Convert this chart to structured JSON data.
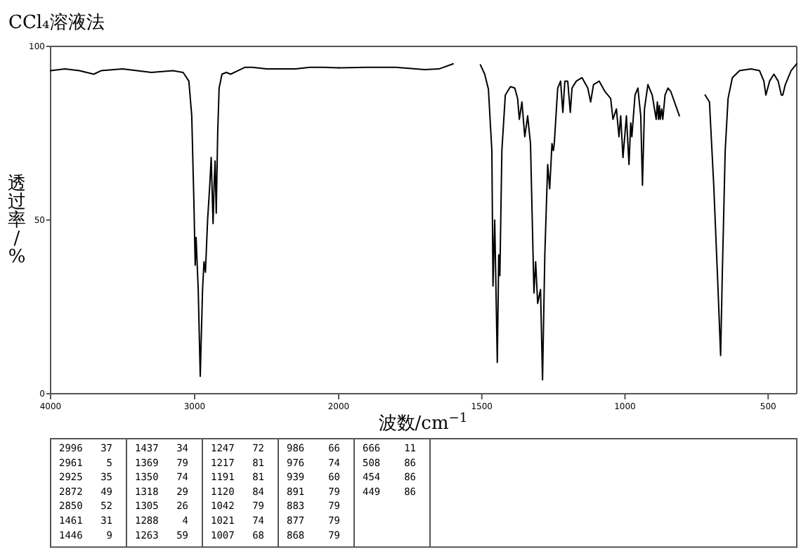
{
  "chart_data": [
    {
      "type": "line",
      "title": "CCl₄溶液法",
      "ylabel": "透过率/%",
      "xlim": [
        4000,
        2000
      ],
      "xticks": [
        4000,
        3000,
        2000
      ],
      "ylim": [
        0,
        100
      ],
      "yticks": [
        0,
        50,
        100
      ],
      "grid": false,
      "series": [
        {
          "color": "#000000",
          "x": [
            4000,
            3900,
            3800,
            3700,
            3650,
            3500,
            3300,
            3150,
            3080,
            3040,
            3020,
            3005,
            2996,
            2990,
            2975,
            2961,
            2945,
            2935,
            2925,
            2910,
            2895,
            2885,
            2872,
            2865,
            2858,
            2850,
            2840,
            2830,
            2810,
            2780,
            2750,
            2700,
            2650,
            2600,
            2500,
            2400,
            2300,
            2200,
            2100,
            2000
          ],
          "values": [
            93,
            93.5,
            93,
            92,
            93,
            93.5,
            92.5,
            93,
            92.5,
            90,
            80,
            55,
            37,
            45,
            30,
            5,
            30,
            38,
            35,
            50,
            60,
            68,
            49,
            60,
            67,
            52,
            75,
            88,
            92,
            92.5,
            92,
            93,
            94,
            94,
            93.5,
            93.5,
            93.5,
            94,
            94,
            93.8
          ]
        }
      ],
      "annotations": [
        "2996 37",
        "2961 5",
        "2925 35",
        "2872 49",
        "2850 52",
        "1461 31",
        "1446 9",
        "1437 34",
        "1369 79",
        "1350 74",
        "1318 29",
        "1305 26",
        "1288 4",
        "1263 59",
        "1247 72",
        "1217 81",
        "1191 81",
        "1120 84",
        "1042 79",
        "1021 74",
        "1007 68",
        "986 66",
        "976 74",
        "939 60",
        "891 79",
        "883 79",
        "877 79",
        "868 79",
        "666 11",
        "508 86",
        "454 86",
        "449 86"
      ]
    },
    {
      "type": "line",
      "xlabel": "波数/cm$^{−1}$",
      "xlim": [
        2000,
        400
      ],
      "xticks": [
        1500,
        1000,
        500
      ],
      "ylim": [
        0,
        100
      ],
      "tick_labels": "x",
      "grid": false,
      "series": [
        {
          "color": "#000000",
          "x": [
            2000,
            1900,
            1800,
            1700,
            1650,
            1600
          ],
          "values": [
            93.8,
            94,
            94,
            93.3,
            93.5,
            95
          ]
        },
        {
          "color": "#000000",
          "x": [
            1505,
            1490,
            1477,
            1465,
            1461,
            1455,
            1446,
            1441,
            1437,
            1430,
            1418,
            1400,
            1385,
            1375,
            1369,
            1360,
            1350,
            1340,
            1330,
            1318,
            1312,
            1305,
            1295,
            1288,
            1280,
            1270,
            1263,
            1255,
            1250,
            1247,
            1235,
            1225,
            1217,
            1210,
            1200,
            1191,
            1185,
            1170,
            1150,
            1130,
            1120,
            1110,
            1090,
            1070,
            1050,
            1042,
            1030,
            1021,
            1015,
            1007,
            995,
            986,
            980,
            976,
            965,
            955,
            945,
            939,
            932,
            920,
            905,
            891,
            887,
            883,
            880,
            877,
            872,
            868,
            860,
            850,
            840,
            810
          ],
          "values": [
            94.7,
            92,
            87.7,
            70,
            31,
            50,
            9,
            40,
            34,
            70,
            86,
            88.4,
            88,
            85,
            79,
            84,
            74,
            80,
            72,
            29,
            38,
            26,
            30,
            4,
            40,
            66,
            59,
            72,
            70,
            72,
            88,
            90,
            81,
            90,
            90,
            81,
            88,
            90,
            91,
            88,
            84,
            89,
            90,
            87,
            85,
            79,
            82,
            74,
            80,
            68,
            80,
            66,
            78,
            74,
            86,
            88,
            80,
            60,
            82,
            89,
            86,
            79,
            84,
            79,
            83,
            79,
            82,
            79,
            86,
            88,
            87,
            80
          ]
        },
        {
          "color": "#000000",
          "x": [
            720,
            705,
            690,
            675,
            666,
            660,
            650,
            640,
            625,
            600,
            560,
            530,
            515,
            508,
            495,
            480,
            465,
            454,
            449,
            440,
            420,
            400
          ],
          "values": [
            86,
            84,
            60,
            30,
            11,
            35,
            70,
            85,
            91,
            93,
            93.5,
            93,
            90,
            86,
            90,
            92,
            90,
            86,
            86,
            89,
            93,
            95
          ]
        }
      ]
    }
  ]
}
